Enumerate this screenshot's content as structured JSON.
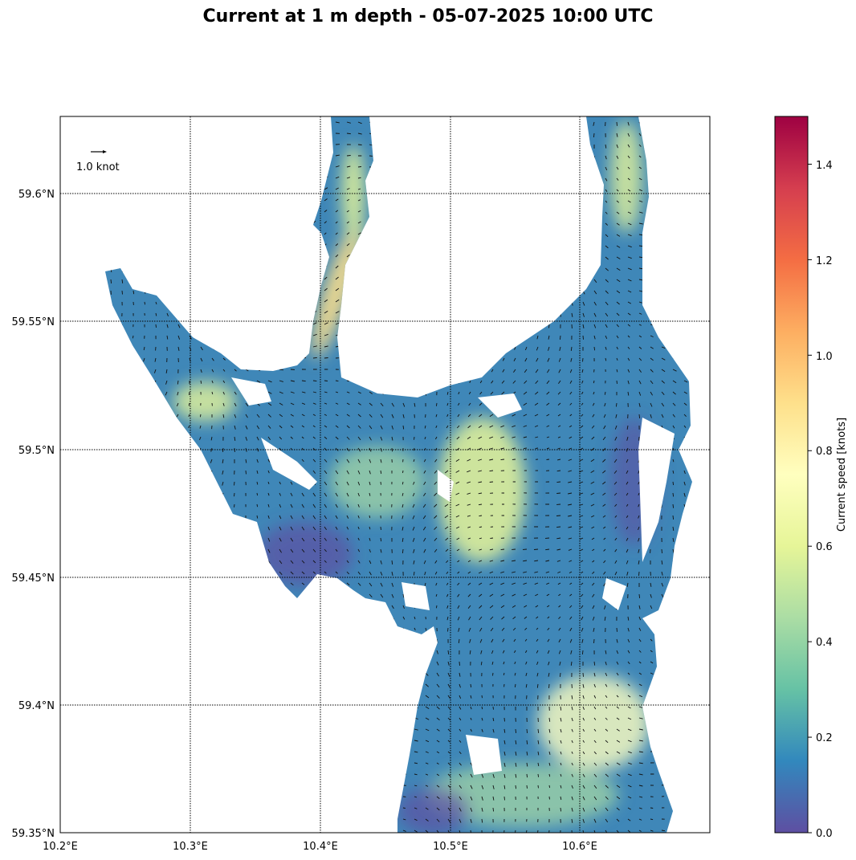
{
  "title": "Current at 1 m depth - 05-07-2025 10:00 UTC",
  "map": {
    "lon_ticks": [
      "10.2°E",
      "10.3°E",
      "10.4°E",
      "10.5°E",
      "10.6°E"
    ],
    "lat_ticks": [
      "59.6°N",
      "59.55°N",
      "59.5°N",
      "59.45°N",
      "59.4°N",
      "59.35°N"
    ],
    "grid": true,
    "grid_style": "dotted",
    "vector_reference": "1.0 knot"
  },
  "colorbar": {
    "label": "Current speed [knots]",
    "ticks": [
      "0.0",
      "0.2",
      "0.4",
      "0.6",
      "0.8",
      "1.0",
      "1.2",
      "1.4"
    ],
    "range": [
      0,
      1.5
    ],
    "colormap": "Spectral_r",
    "colors": [
      "#5e4fa2",
      "#3288bd",
      "#66c2a5",
      "#abdda4",
      "#e6f598",
      "#ffffbf",
      "#fee08b",
      "#fdae61",
      "#f46d43",
      "#d53e4f",
      "#9e0142"
    ]
  },
  "water_color": "#3f87b8",
  "land_color": "#ffffff"
}
